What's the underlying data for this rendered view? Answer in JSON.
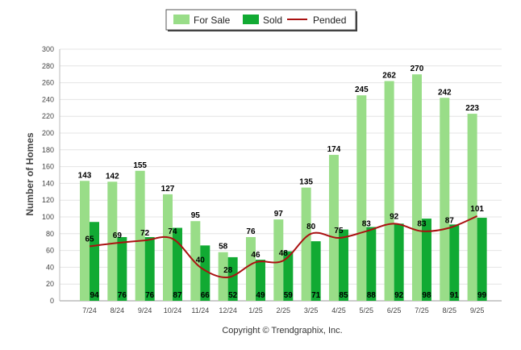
{
  "chart_data": {
    "type": "bar",
    "title": "",
    "xlabel": "",
    "ylabel": "Number of Homes",
    "ylim": [
      0,
      300
    ],
    "yticks": [
      0,
      20,
      40,
      60,
      80,
      100,
      120,
      140,
      160,
      180,
      200,
      220,
      240,
      260,
      280,
      300
    ],
    "grid": true,
    "legend_position": "top-center",
    "categories": [
      "7/24",
      "8/24",
      "9/24",
      "10/24",
      "11/24",
      "12/24",
      "1/25",
      "2/25",
      "3/25",
      "4/25",
      "5/25",
      "6/25",
      "7/25",
      "8/25",
      "9/25"
    ],
    "series": [
      {
        "name": "For Sale",
        "type": "bar",
        "color": "#99dd88",
        "values": [
          143,
          142,
          155,
          127,
          95,
          58,
          76,
          97,
          135,
          174,
          245,
          262,
          270,
          242,
          223
        ]
      },
      {
        "name": "Sold",
        "type": "bar",
        "color": "#11aa33",
        "values": [
          94,
          76,
          76,
          87,
          66,
          52,
          49,
          59,
          71,
          85,
          88,
          92,
          98,
          91,
          99
        ]
      },
      {
        "name": "Pended",
        "type": "line",
        "color": "#aa1111",
        "values": [
          65,
          69,
          72,
          74,
          40,
          28,
          46,
          48,
          80,
          75,
          83,
          92,
          83,
          87,
          101
        ]
      }
    ]
  },
  "copyright": "Copyright © Trendgraphix, Inc."
}
